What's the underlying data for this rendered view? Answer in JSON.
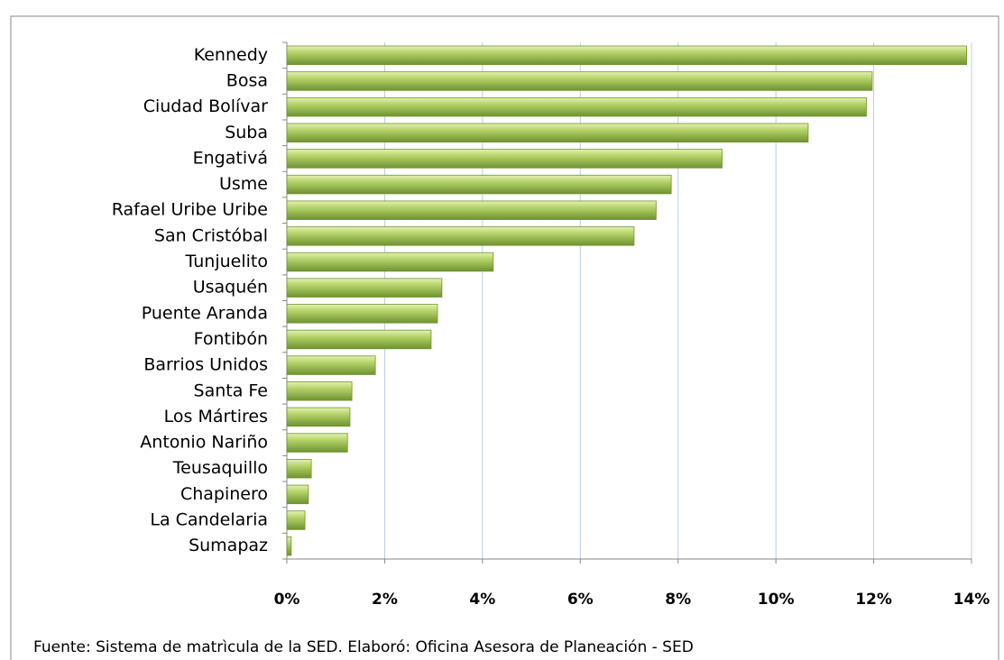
{
  "chart_data": {
    "type": "bar",
    "orientation": "horizontal",
    "categories": [
      "Kennedy",
      "Bosa",
      "Ciudad Bolívar",
      "Suba",
      "Engativá",
      "Usme",
      "Rafael Uribe Uribe",
      "San Cristóbal",
      "Tunjuelito",
      "Usaquén",
      "Puente Aranda",
      "Fontibón",
      "Barrios Unidos",
      "Santa Fe",
      "Los Mártires",
      "Antonio Nariño",
      "Teusaquillo",
      "Chapinero",
      "La Candelaria",
      "Sumapaz"
    ],
    "values": [
      13.9,
      11.97,
      11.85,
      10.66,
      8.9,
      7.86,
      7.55,
      7.1,
      4.22,
      3.17,
      3.08,
      2.95,
      1.81,
      1.33,
      1.29,
      1.24,
      0.5,
      0.44,
      0.37,
      0.09
    ],
    "color": "#9bbb59",
    "xlim": [
      0,
      14
    ],
    "xticks": [
      {
        "value": 0,
        "label": "0%"
      },
      {
        "value": 2,
        "label": "2%"
      },
      {
        "value": 4,
        "label": "4%"
      },
      {
        "value": 6,
        "label": "6%"
      },
      {
        "value": 8,
        "label": "8%"
      },
      {
        "value": 10,
        "label": "10%"
      },
      {
        "value": 12,
        "label": "12%"
      },
      {
        "value": 14,
        "label": "14%"
      }
    ],
    "grid": true,
    "source": "Fuente: Sistema de matrìcula de la SED.  Elaboró: Oficina Asesora de Planeación - SED"
  }
}
